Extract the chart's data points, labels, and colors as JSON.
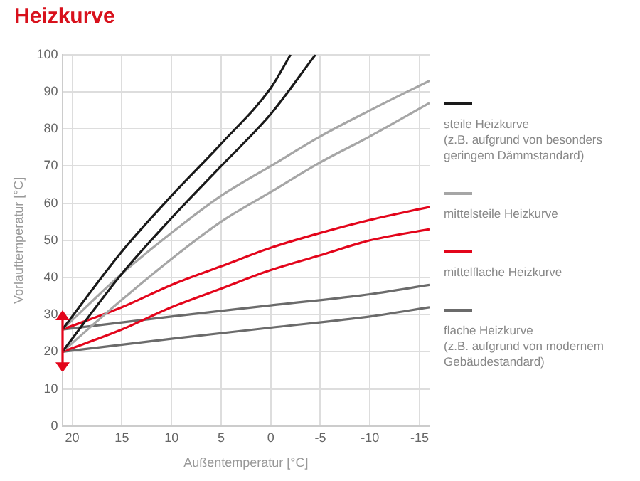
{
  "chart_data": {
    "type": "line",
    "title": "Heizkurve",
    "xlabel": "Außentemperatur [°C]",
    "ylabel": "Vorlauftemperatur [°C]",
    "xlim": [
      21,
      -16
    ],
    "xticks": [
      20,
      15,
      10,
      5,
      0,
      -5,
      -10,
      -15
    ],
    "ylim": [
      0,
      100
    ],
    "yticks": [
      0,
      10,
      20,
      30,
      40,
      50,
      60,
      70,
      80,
      90,
      100
    ],
    "grid": true,
    "legend": "right",
    "marker": "none",
    "line_style": "solid",
    "series": [
      {
        "name": "steile Heizkurve\n(z.B. aufgrund von besonders\ngeringem Dämmstandard)",
        "color": "#1a1a1a",
        "x": [
          21,
          15,
          10,
          5,
          0,
          -2
        ],
        "values": [
          26,
          47,
          62,
          76,
          91,
          100
        ]
      },
      {
        "color": "#1a1a1a",
        "x": [
          21,
          15,
          10,
          5,
          0,
          -4.5
        ],
        "values": [
          20,
          41,
          56,
          70,
          84,
          100
        ]
      },
      {
        "name": "mittelsteile Heizkurve",
        "color": "#a6a6a6",
        "x": [
          21,
          15,
          10,
          5,
          0,
          -5,
          -10,
          -16
        ],
        "values": [
          26,
          41,
          52,
          62,
          70,
          78,
          85,
          93
        ]
      },
      {
        "color": "#a6a6a6",
        "x": [
          21,
          15,
          10,
          5,
          0,
          -5,
          -10,
          -16
        ],
        "values": [
          20,
          34,
          45,
          55,
          63,
          71,
          78,
          87
        ]
      },
      {
        "name": "mittelflache Heizkurve",
        "color": "#e3051b",
        "x": [
          21,
          15,
          10,
          5,
          0,
          -5,
          -10,
          -16
        ],
        "values": [
          26,
          32,
          38,
          43,
          48,
          52,
          55.5,
          59
        ]
      },
      {
        "color": "#e3051b",
        "x": [
          21,
          15,
          10,
          5,
          0,
          -5,
          -10,
          -16
        ],
        "values": [
          20,
          26,
          32,
          37,
          42,
          46,
          50,
          53
        ]
      },
      {
        "name": "flache Heizkurve\n(z.B. aufgrund von modernem\nGebäudestandard)",
        "color": "#6b6b6b",
        "x": [
          21,
          10,
          0,
          -10,
          -16
        ],
        "values": [
          26,
          29.5,
          32.5,
          35.5,
          38
        ]
      },
      {
        "color": "#6b6b6b",
        "x": [
          21,
          10,
          0,
          -10,
          -16
        ],
        "values": [
          20,
          23.5,
          26.5,
          29.5,
          32
        ]
      }
    ]
  }
}
